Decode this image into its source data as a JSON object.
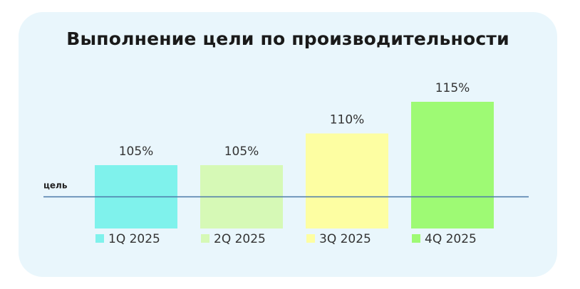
{
  "chart_data": {
    "type": "bar",
    "title": "Выполнение цели по производительности",
    "categories": [
      "1Q 2025",
      "2Q 2025",
      "3Q 2025",
      "4Q 2025"
    ],
    "values": [
      105,
      105,
      110,
      115
    ],
    "data_labels": [
      "105%",
      "105%",
      "110%",
      "115%"
    ],
    "colors": [
      "#7ff2ec",
      "#d6f9b6",
      "#fdfea2",
      "#9efa74"
    ],
    "ylim": [
      95,
      115
    ],
    "goal_label": "цель",
    "goal_value": 100,
    "goal_color": "#4a78a8",
    "legend_position": "bottom",
    "grid": false
  }
}
